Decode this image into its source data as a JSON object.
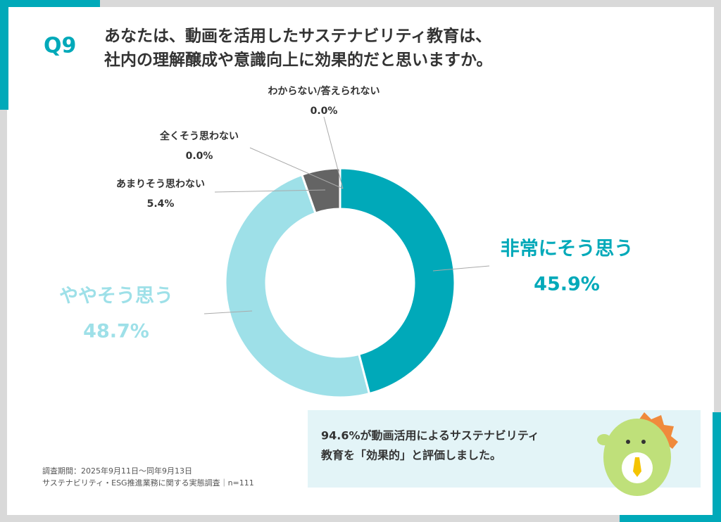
{
  "chart_data": {
    "type": "donut",
    "question_number": "Q9",
    "title": [
      "あなたは、動画を活用したサステナビリティ教育は、",
      "社内の理解醸成や意識向上に効果的だと思いますか。"
    ],
    "categories": [
      "非常にそう思う",
      "ややそう思う",
      "あまりそう思わない",
      "全くそう思わない",
      "わからない/答えられない"
    ],
    "values": [
      45.9,
      48.7,
      5.4,
      0.0,
      0.0
    ],
    "value_labels": [
      "45.9%",
      "48.7%",
      "5.4%",
      "0.0%",
      "0.0%"
    ],
    "colors": [
      "#00a9b9",
      "#9ee0e8",
      "#646464",
      "#4a4a4a",
      "#333333"
    ]
  },
  "note": [
    "94.6%が動画活用によるサステナビリティ",
    "教育を「効果的」と評価しました。"
  ],
  "footnotes": [
    "調査期間：2025年9月11日～同年9月13日",
    "サステナビリティ・ESG推進業務に関する実態調査｜n=111"
  ]
}
